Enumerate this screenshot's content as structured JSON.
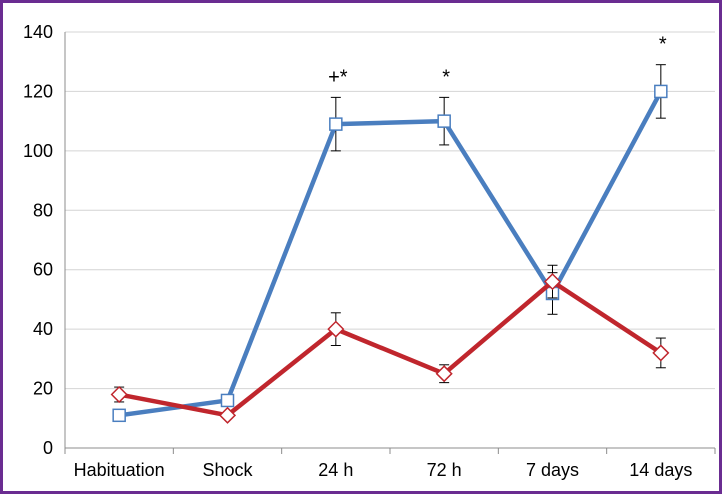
{
  "chart_data": {
    "type": "line",
    "categories": [
      "Habituation",
      "Shock",
      "24 h",
      "72 h",
      "7 days",
      "14 days"
    ],
    "ylim": [
      0,
      140
    ],
    "yticks": [
      0,
      20,
      40,
      60,
      80,
      100,
      120,
      140
    ],
    "grid": true,
    "legend": "none",
    "series": [
      {
        "color": "#4a7ebf",
        "marker": "square",
        "values": [
          11,
          16,
          109,
          110,
          52,
          120
        ],
        "errors": [
          0,
          0,
          9,
          8,
          7,
          9
        ]
      },
      {
        "color": "#c0262d",
        "marker": "diamond",
        "values": [
          18,
          11,
          40,
          25,
          56,
          32
        ],
        "errors": [
          2.5,
          0,
          5.5,
          3,
          5.5,
          5
        ]
      }
    ],
    "annotations": [
      {
        "category": "24 h",
        "text": "+*"
      },
      {
        "category": "72 h",
        "text": "*"
      },
      {
        "category": "14 days",
        "text": "*"
      }
    ]
  }
}
